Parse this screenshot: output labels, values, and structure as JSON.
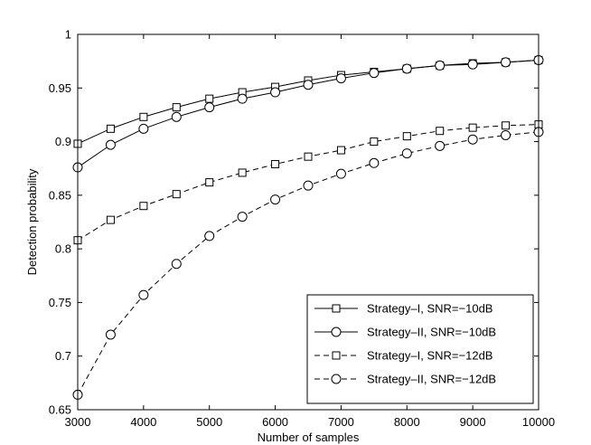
{
  "chart_data": {
    "type": "line",
    "title": "",
    "xlabel": "Number of samples",
    "ylabel": "Detection probability",
    "xlim": [
      3000,
      10000
    ],
    "ylim": [
      0.65,
      1
    ],
    "xticks": [
      3000,
      4000,
      5000,
      6000,
      7000,
      8000,
      9000,
      10000
    ],
    "xtick_labels": [
      "3000",
      "4000",
      "5000",
      "6000",
      "7000",
      "8000",
      "9000",
      "10000"
    ],
    "yticks": [
      0.65,
      0.7,
      0.75,
      0.8,
      0.85,
      0.9,
      0.95,
      1
    ],
    "ytick_labels": [
      "0.65",
      "0.7",
      "0.75",
      "0.8",
      "0.85",
      "0.9",
      "0.95",
      "1"
    ],
    "grid": false,
    "legend_position": "bottom-right",
    "x": [
      3000,
      3500,
      4000,
      4500,
      5000,
      5500,
      6000,
      6500,
      7000,
      7500,
      8000,
      8500,
      9000,
      9500,
      10000
    ],
    "series": [
      {
        "name": "Strategy–I, SNR=−10dB",
        "line_style": "solid",
        "marker": "square",
        "values": [
          0.898,
          0.912,
          0.923,
          0.932,
          0.94,
          0.946,
          0.951,
          0.957,
          0.962,
          0.965,
          0.968,
          0.971,
          0.973,
          0.974,
          0.976
        ]
      },
      {
        "name": "Strategy–II, SNR=−10dB",
        "line_style": "solid",
        "marker": "circle",
        "values": [
          0.876,
          0.897,
          0.912,
          0.923,
          0.932,
          0.94,
          0.946,
          0.953,
          0.959,
          0.964,
          0.968,
          0.971,
          0.972,
          0.974,
          0.976
        ]
      },
      {
        "name": "Strategy–I, SNR=−12dB",
        "line_style": "dashed",
        "marker": "square",
        "values": [
          0.808,
          0.827,
          0.84,
          0.851,
          0.862,
          0.871,
          0.879,
          0.886,
          0.892,
          0.9,
          0.905,
          0.91,
          0.913,
          0.915,
          0.916
        ]
      },
      {
        "name": "Strategy–II, SNR=−12dB",
        "line_style": "dashed",
        "marker": "circle",
        "values": [
          0.664,
          0.72,
          0.757,
          0.786,
          0.812,
          0.83,
          0.846,
          0.859,
          0.87,
          0.88,
          0.889,
          0.896,
          0.902,
          0.906,
          0.909
        ]
      }
    ]
  }
}
